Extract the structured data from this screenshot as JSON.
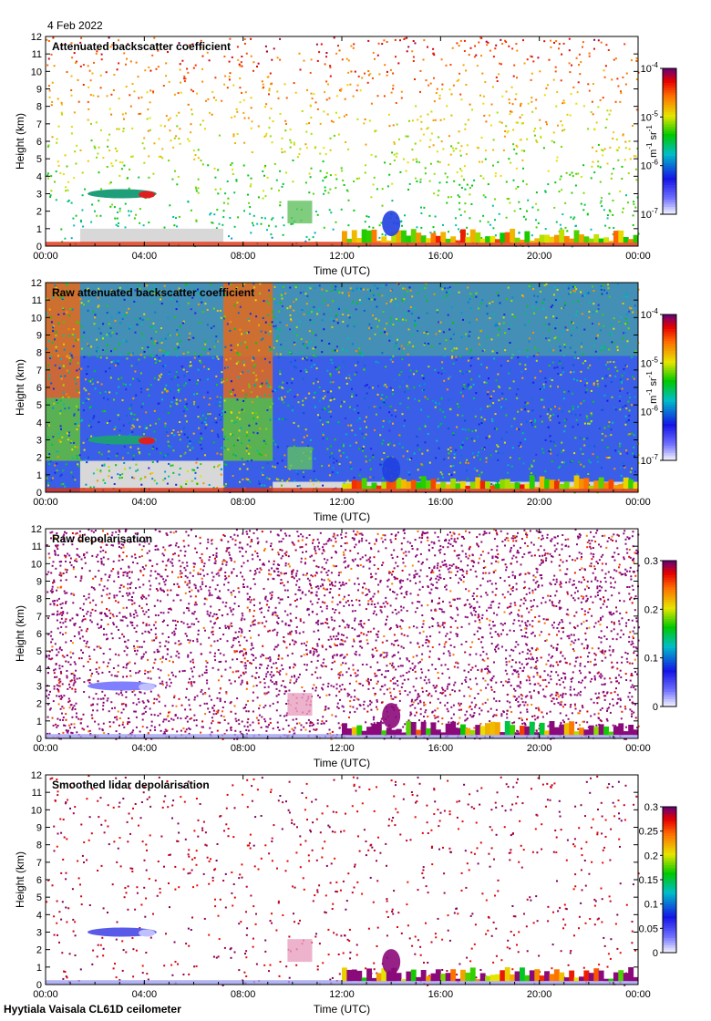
{
  "date_label": "4 Feb 2022",
  "footer": "Hyytiala Vaisala CL61D ceilometer",
  "chart_data": [
    {
      "type": "heatmap",
      "title": "Attenuated backscatter coefficient",
      "xlabel": "Time (UTC)",
      "ylabel": "Height (km)",
      "x_ticks": [
        "00:00",
        "04:00",
        "08:00",
        "12:00",
        "16:00",
        "20:00",
        "00:00"
      ],
      "xlim_hours": [
        0,
        24
      ],
      "ylim": [
        0,
        12
      ],
      "y_ticks": [
        0,
        1,
        2,
        3,
        4,
        5,
        6,
        7,
        8,
        9,
        10,
        11,
        12
      ],
      "colorbar": {
        "scale": "log",
        "range": [
          1e-07,
          0.0001
        ],
        "tick_bases": [
          "10",
          "10",
          "10",
          "10"
        ],
        "tick_exponents": [
          "-4",
          "-5",
          "-6",
          "-7"
        ],
        "unit_main": "m",
        "unit_exp1": "-1",
        "unit_mid": " sr",
        "unit_exp2": "-1"
      },
      "features": [
        {
          "label": "elevated cloud layer",
          "time_start": 1.7,
          "time_end": 4.5,
          "height": 3.0
        },
        {
          "label": "boundary layer",
          "time_start": 12,
          "time_end": 24,
          "height_max": 1.0
        }
      ]
    },
    {
      "type": "heatmap",
      "title": "Raw attenuated backscatter coefficient",
      "xlabel": "Time (UTC)",
      "ylabel": "Height (km)",
      "x_ticks": [
        "00:00",
        "04:00",
        "08:00",
        "12:00",
        "16:00",
        "20:00",
        "00:00"
      ],
      "xlim_hours": [
        0,
        24
      ],
      "ylim": [
        0,
        12
      ],
      "y_ticks": [
        0,
        1,
        2,
        3,
        4,
        5,
        6,
        7,
        8,
        9,
        10,
        11,
        12
      ],
      "colorbar": {
        "scale": "log",
        "range": [
          1e-07,
          0.0001
        ],
        "tick_bases": [
          "10",
          "10",
          "10",
          "10"
        ],
        "tick_exponents": [
          "-4",
          "-5",
          "-6",
          "-7"
        ],
        "unit_main": "m",
        "unit_exp1": "-1",
        "unit_mid": " sr",
        "unit_exp2": "-1"
      }
    },
    {
      "type": "heatmap",
      "title": "Raw depolarisation",
      "xlabel": "Time (UTC)",
      "ylabel": "Height (km)",
      "x_ticks": [
        "00:00",
        "04:00",
        "08:00",
        "12:00",
        "16:00",
        "20:00",
        "00:00"
      ],
      "xlim_hours": [
        0,
        24
      ],
      "ylim": [
        0,
        12
      ],
      "y_ticks": [
        0,
        1,
        2,
        3,
        4,
        5,
        6,
        7,
        8,
        9,
        10,
        11,
        12
      ],
      "colorbar": {
        "scale": "linear",
        "range": [
          0,
          0.3
        ],
        "ticks": [
          "0.3",
          "0.2",
          "0.1",
          "0"
        ]
      }
    },
    {
      "type": "heatmap",
      "title": "Smoothed lidar depolarisation",
      "xlabel": "Time (UTC)",
      "ylabel": "Height (km)",
      "x_ticks": [
        "00:00",
        "04:00",
        "08:00",
        "12:00",
        "16:00",
        "20:00",
        "00:00"
      ],
      "xlim_hours": [
        0,
        24
      ],
      "ylim": [
        0,
        12
      ],
      "y_ticks": [
        0,
        1,
        2,
        3,
        4,
        5,
        6,
        7,
        8,
        9,
        10,
        11,
        12
      ],
      "colorbar": {
        "scale": "linear",
        "range": [
          0,
          0.3
        ],
        "ticks": [
          "0.3",
          "0.25",
          "0.2",
          "0.15",
          "0.1",
          "0.05",
          "0"
        ]
      }
    }
  ]
}
